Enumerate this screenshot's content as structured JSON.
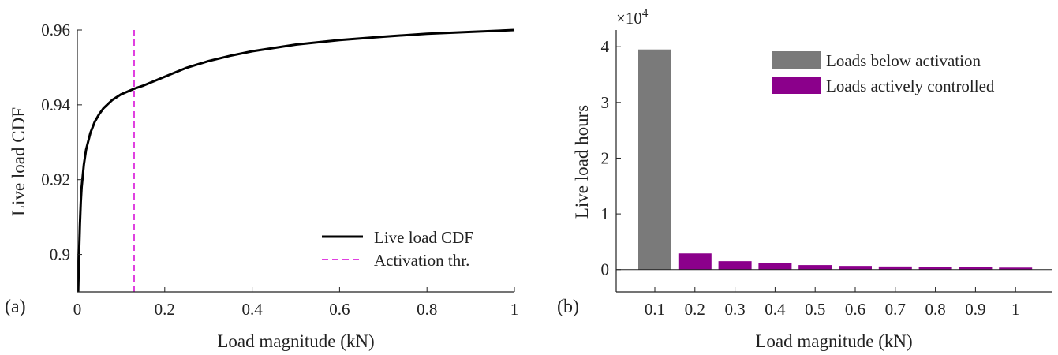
{
  "chart_data": [
    {
      "type": "line",
      "panel_label": "(a)",
      "xlabel": "Load magnitude (kN)",
      "ylabel": "Live load CDF",
      "xlim": [
        0,
        1
      ],
      "ylim": [
        0.89,
        0.96
      ],
      "xticks": [
        0,
        0.2,
        0.4,
        0.6,
        0.8,
        1
      ],
      "xtick_labels": [
        "0",
        "0.2",
        "0.4",
        "0.6",
        "0.8",
        "1"
      ],
      "yticks": [
        0.9,
        0.92,
        0.94,
        0.96
      ],
      "ytick_labels": [
        "0.9",
        "0.92",
        "0.94",
        "0.96"
      ],
      "grid": false,
      "legend_position": "bottom-right",
      "series": [
        {
          "name": "Live load CDF",
          "color": "#000000",
          "style": "solid",
          "x": [
            0.002,
            0.004,
            0.006,
            0.008,
            0.01,
            0.015,
            0.02,
            0.03,
            0.04,
            0.05,
            0.06,
            0.08,
            0.1,
            0.13,
            0.15,
            0.2,
            0.25,
            0.3,
            0.35,
            0.4,
            0.5,
            0.6,
            0.7,
            0.8,
            0.9,
            1.0
          ],
          "y": [
            0.89,
            0.9,
            0.908,
            0.914,
            0.918,
            0.924,
            0.928,
            0.9325,
            0.9355,
            0.9375,
            0.9391,
            0.9413,
            0.9428,
            0.9443,
            0.9451,
            0.9475,
            0.9499,
            0.9517,
            0.9531,
            0.9543,
            0.9561,
            0.9573,
            0.9582,
            0.959,
            0.9595,
            0.96
          ]
        },
        {
          "name": "Activation thr.",
          "color": "#e040e0",
          "style": "dashed",
          "x": [
            0.13,
            0.13
          ],
          "y": [
            0.89,
            0.96
          ]
        }
      ]
    },
    {
      "type": "bar",
      "panel_label": "(b)",
      "xlabel": "Load magnitude (kN)",
      "ylabel": "Live load hours",
      "y_multiplier_label": "×10",
      "y_multiplier_exponent": "4",
      "categories": [
        "0.1",
        "0.2",
        "0.3",
        "0.4",
        "0.5",
        "0.6",
        "0.7",
        "0.8",
        "0.9",
        "1"
      ],
      "ylim": [
        -0.4,
        4.3
      ],
      "yticks": [
        0,
        1,
        2,
        3,
        4
      ],
      "ytick_labels": [
        "0",
        "1",
        "2",
        "3",
        "4"
      ],
      "grid": false,
      "legend_position": "top-right",
      "legend": [
        {
          "name": "Loads below activation",
          "color": "#7a7a7a"
        },
        {
          "name": "Loads actively controlled",
          "color": "#8b008b"
        }
      ],
      "values": [
        3.95,
        0.29,
        0.15,
        0.11,
        0.08,
        0.065,
        0.055,
        0.05,
        0.04,
        0.035
      ],
      "bar_groups": [
        0,
        1,
        1,
        1,
        1,
        1,
        1,
        1,
        1,
        1
      ]
    }
  ]
}
